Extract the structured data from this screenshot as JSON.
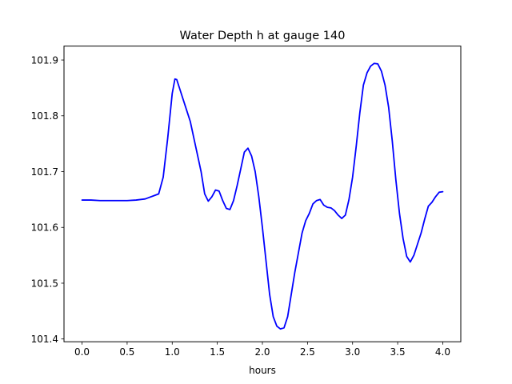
{
  "chart_data": {
    "type": "line",
    "title": "Water Depth h at gauge 140",
    "xlabel": "hours",
    "ylabel": "",
    "xlim": [
      -0.2,
      4.2
    ],
    "ylim": [
      101.395,
      101.925
    ],
    "xticks": [
      0.0,
      0.5,
      1.0,
      1.5,
      2.0,
      2.5,
      3.0,
      3.5,
      4.0
    ],
    "xtick_labels": [
      "0.0",
      "0.5",
      "1.0",
      "1.5",
      "2.0",
      "2.5",
      "3.0",
      "3.5",
      "4.0"
    ],
    "yticks": [
      101.4,
      101.5,
      101.6,
      101.7,
      101.8,
      101.9
    ],
    "ytick_labels": [
      "101.4",
      "101.5",
      "101.6",
      "101.7",
      "101.8",
      "101.9"
    ],
    "grid": false,
    "series": [
      {
        "color": "#0000ff",
        "x": [
          0.0,
          0.1,
          0.2,
          0.3,
          0.4,
          0.5,
          0.6,
          0.7,
          0.75,
          0.8,
          0.85,
          0.9,
          0.95,
          1.0,
          1.03,
          1.05,
          1.08,
          1.12,
          1.16,
          1.2,
          1.24,
          1.28,
          1.32,
          1.36,
          1.4,
          1.44,
          1.48,
          1.52,
          1.56,
          1.6,
          1.64,
          1.68,
          1.72,
          1.76,
          1.8,
          1.84,
          1.88,
          1.92,
          1.96,
          2.0,
          2.04,
          2.08,
          2.12,
          2.16,
          2.2,
          2.24,
          2.28,
          2.32,
          2.36,
          2.4,
          2.44,
          2.48,
          2.52,
          2.56,
          2.6,
          2.64,
          2.68,
          2.72,
          2.76,
          2.8,
          2.84,
          2.88,
          2.92,
          2.96,
          3.0,
          3.04,
          3.08,
          3.12,
          3.16,
          3.2,
          3.24,
          3.28,
          3.32,
          3.36,
          3.4,
          3.44,
          3.48,
          3.52,
          3.56,
          3.6,
          3.64,
          3.68,
          3.72,
          3.76,
          3.8,
          3.84,
          3.88,
          3.92,
          3.96,
          4.0
        ],
        "y": [
          101.649,
          101.649,
          101.648,
          101.648,
          101.648,
          101.648,
          101.649,
          101.651,
          101.654,
          101.657,
          101.66,
          101.69,
          101.76,
          101.84,
          101.866,
          101.865,
          101.85,
          101.83,
          101.81,
          101.79,
          101.76,
          101.73,
          101.7,
          101.66,
          101.647,
          101.655,
          101.667,
          101.665,
          101.648,
          101.634,
          101.632,
          101.648,
          101.675,
          101.705,
          101.735,
          101.742,
          101.728,
          101.7,
          101.655,
          101.6,
          101.54,
          101.48,
          101.44,
          101.423,
          101.418,
          101.42,
          101.44,
          101.48,
          101.52,
          101.555,
          101.59,
          101.612,
          101.625,
          101.642,
          101.648,
          101.65,
          101.64,
          101.636,
          101.635,
          101.63,
          101.622,
          101.616,
          101.622,
          101.65,
          101.69,
          101.745,
          101.805,
          101.855,
          101.877,
          101.889,
          101.894,
          101.893,
          101.88,
          101.855,
          101.815,
          101.755,
          101.685,
          101.625,
          101.58,
          101.548,
          101.538,
          101.55,
          101.57,
          101.59,
          101.615,
          101.638,
          101.645,
          101.655,
          101.663,
          101.664
        ]
      }
    ]
  }
}
